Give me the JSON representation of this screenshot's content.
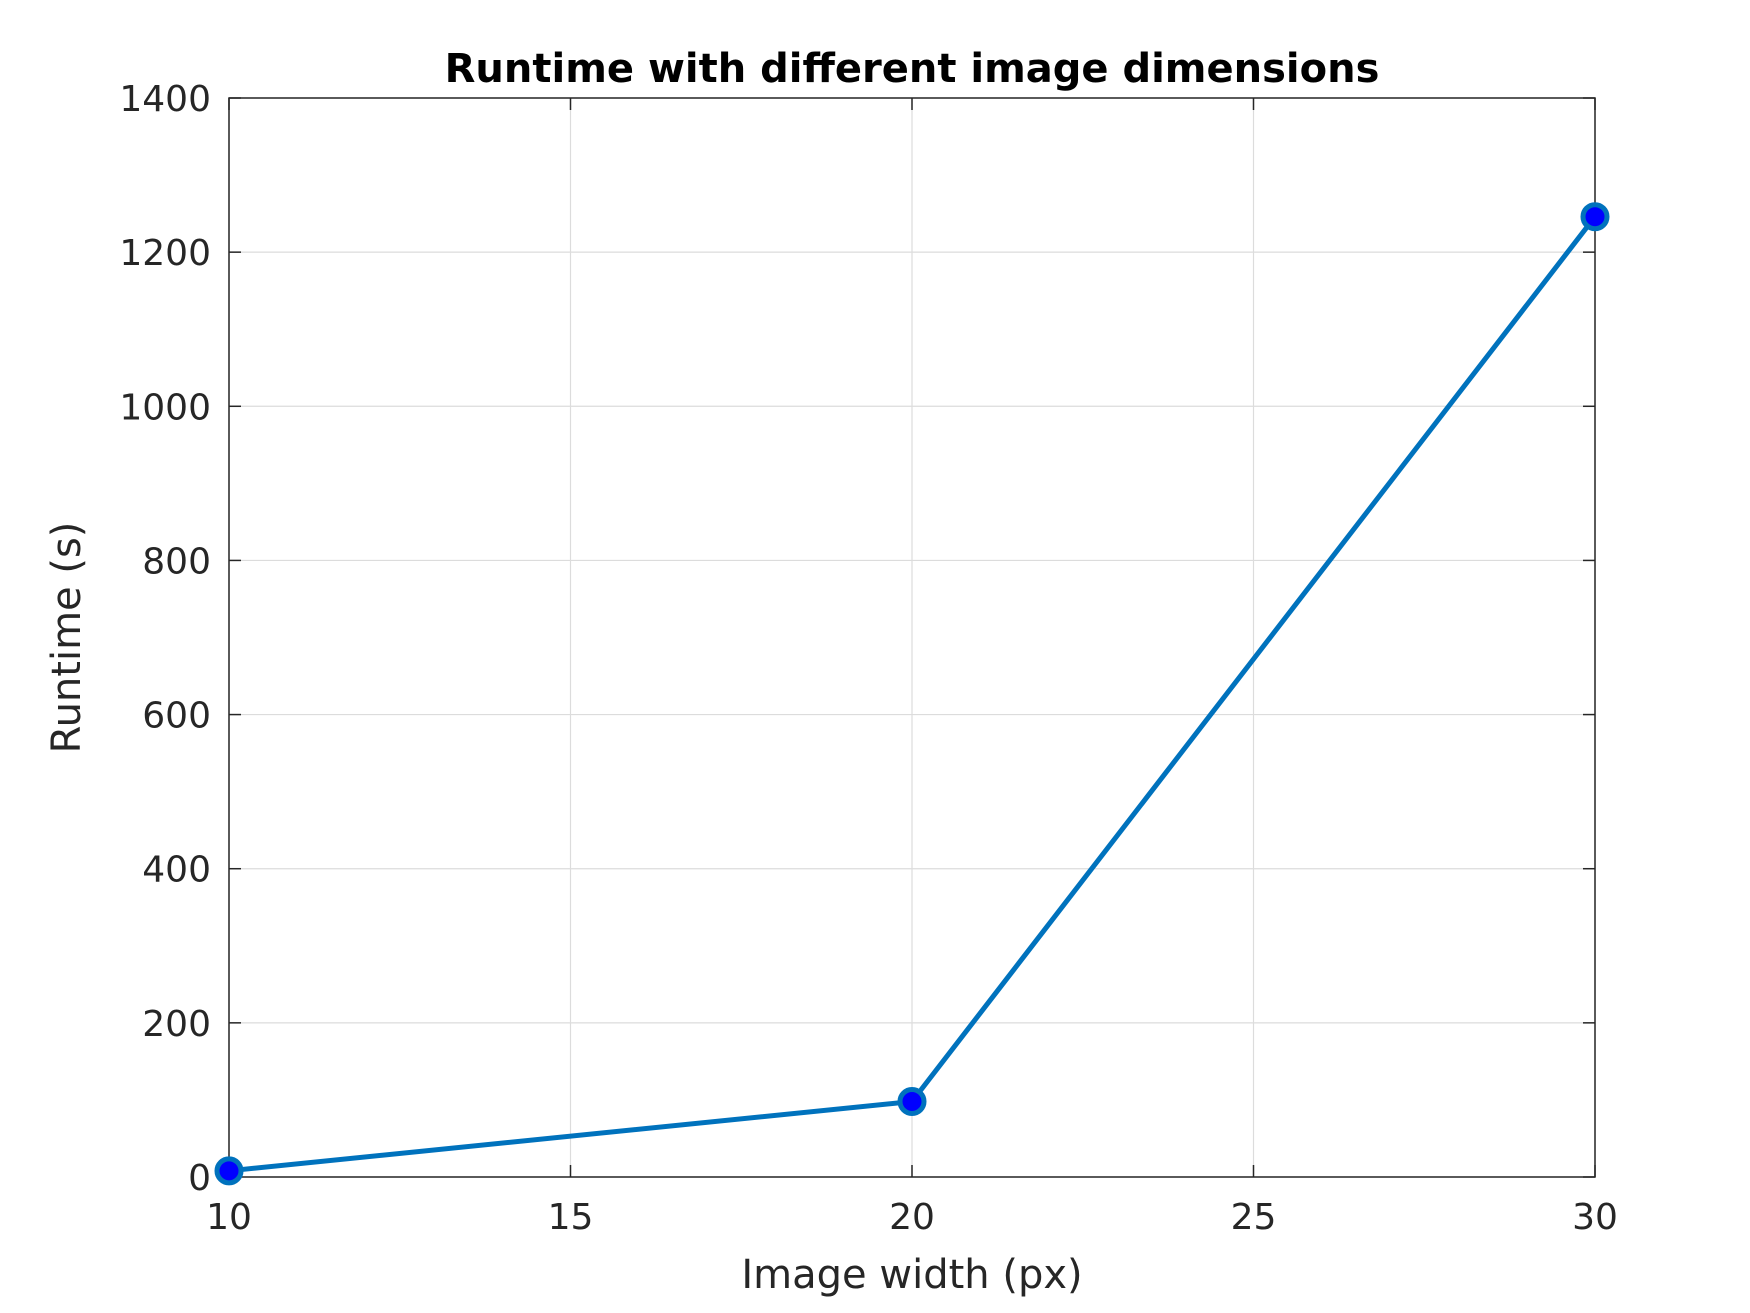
{
  "chart_data": {
    "type": "line",
    "title": "Runtime with different image dimensions",
    "xlabel": "Image width (px)",
    "ylabel": "Runtime (s)",
    "x": [
      10,
      20,
      30
    ],
    "series": [
      {
        "values": [
          8,
          98,
          1246
        ]
      }
    ],
    "xlim": [
      10,
      30
    ],
    "ylim": [
      0,
      1400
    ],
    "xticks": [
      10,
      15,
      20,
      25,
      30
    ],
    "yticks": [
      0,
      200,
      400,
      600,
      800,
      1000,
      1200,
      1400
    ],
    "grid": true,
    "colors": {
      "line": "#0072bd",
      "marker_fill": "#0000ff",
      "marker_edge": "#0072bd",
      "grid": "#dcdcdc",
      "axes": "#262626"
    }
  }
}
